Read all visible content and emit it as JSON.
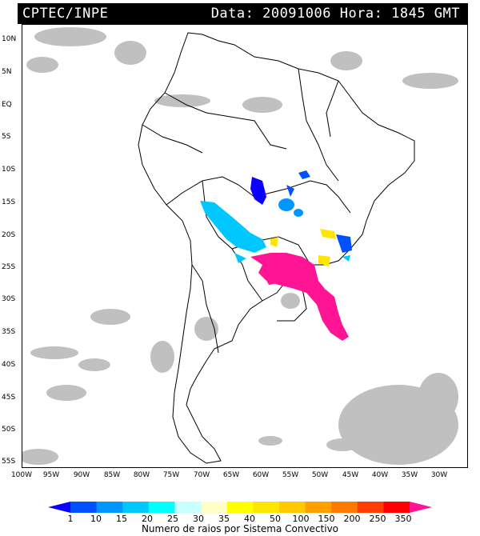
{
  "header": {
    "left": "CPTEC/INPE",
    "right": "Data: 20091006 Hora: 1845 GMT"
  },
  "lat_labels": [
    "10N",
    "5N",
    "EQ",
    "5S",
    "10S",
    "15S",
    "20S",
    "25S",
    "30S",
    "35S",
    "40S",
    "45S",
    "50S",
    "55S"
  ],
  "lon_labels": [
    "100W",
    "95W",
    "90W",
    "85W",
    "80W",
    "75W",
    "70W",
    "65W",
    "60W",
    "55W",
    "50W",
    "45W",
    "40W",
    "35W",
    "30W"
  ],
  "legend": {
    "values": [
      "1",
      "10",
      "15",
      "20",
      "25",
      "30",
      "35",
      "40",
      "50",
      "100",
      "150",
      "200",
      "250",
      "350"
    ],
    "colors": [
      "#0a00ff",
      "#0050ff",
      "#0096ff",
      "#00c8ff",
      "#00ffff",
      "#c8ffff",
      "#ffffc8",
      "#ffff00",
      "#ffe600",
      "#ffc800",
      "#ffa000",
      "#ff7800",
      "#ff3c00",
      "#ff0000",
      "#ff1493"
    ],
    "title": "Numero de raios por Sistema Convectivo"
  },
  "colors": {
    "background": "#ffffff",
    "header_bg": "#000000",
    "header_fg": "#ffffff",
    "clouds": "#c0c0c0",
    "borders": "#000000"
  }
}
